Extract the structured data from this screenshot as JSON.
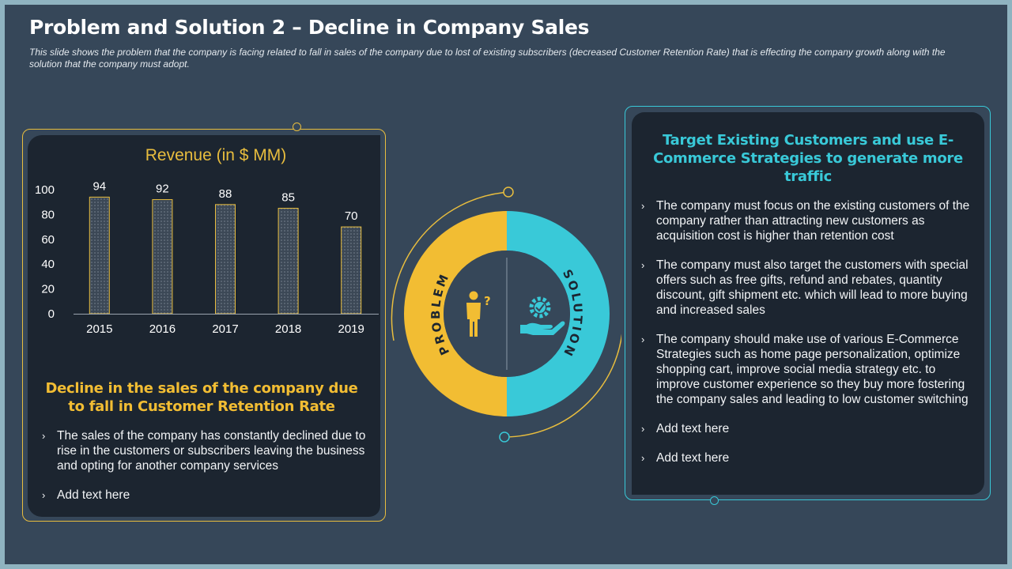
{
  "title": "Problem and Solution 2 – Decline in Company Sales",
  "subtitle": "This slide shows the problem that the company is facing related to fall in sales of the company due to lost of existing subscribers (decreased Customer Retention Rate) that is effecting the company growth along with the solution that the company must adopt.",
  "colors": {
    "background": "#364759",
    "panel": "#1c2530",
    "problem": "#f2bd33",
    "solution": "#39c9d8"
  },
  "chart_data": {
    "type": "bar",
    "title": "Revenue (in $ MM)",
    "categories": [
      "2015",
      "2016",
      "2017",
      "2018",
      "2019"
    ],
    "values": [
      94,
      92,
      88,
      85,
      70
    ],
    "yticks": [
      "0",
      "20",
      "40",
      "60",
      "80",
      "100"
    ],
    "ylim": [
      0,
      100
    ],
    "xlabel": "",
    "ylabel": "",
    "grid": false
  },
  "problem": {
    "ring_label": "PROBLEM",
    "heading": "Decline in the sales of the company due to fall in Customer Retention Rate",
    "bullets": [
      "The sales of the company has constantly  declined due to rise in the customers or subscribers leaving the business and opting for another company services",
      "Add text here"
    ]
  },
  "solution": {
    "ring_label": "SOLUTION",
    "heading": "Target Existing Customers and use E-Commerce Strategies to generate more traffic",
    "bullets": [
      "The company must focus on the existing customers of the company rather than attracting new customers as acquisition cost is higher than retention cost",
      "The company must also target the customers with special offers such as free gifts, refund and rebates, quantity discount, gift shipment etc. which will lead to more buying and increased sales",
      "The company should make use of various E-Commerce Strategies such as home page personalization, optimize shopping cart, improve social media strategy etc. to improve customer experience so they buy more fostering the company sales and leading to low customer switching",
      "Add text here",
      "Add text here"
    ]
  },
  "bullet_glyph": "›",
  "icons": {
    "problem": "person-question-icon",
    "solution": "hand-gear-icon"
  }
}
